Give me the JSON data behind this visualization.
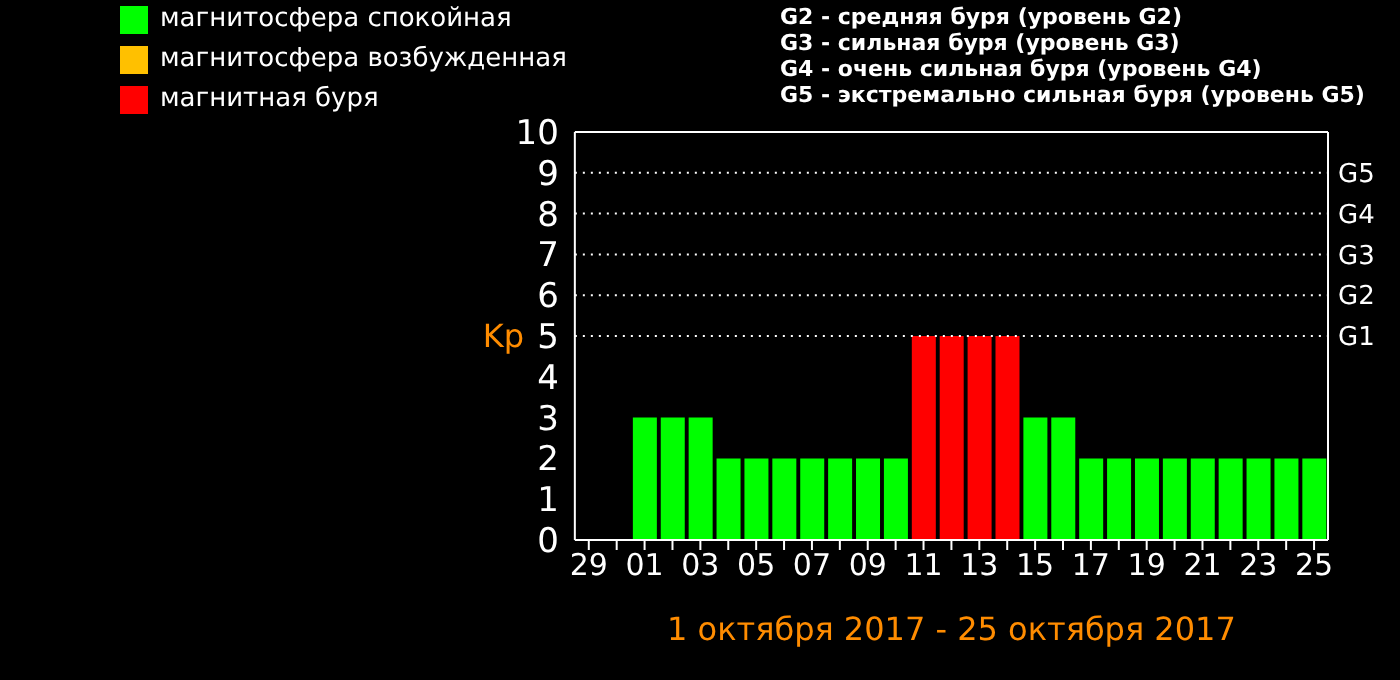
{
  "chart_data": {
    "type": "bar",
    "xlabel": "1 октября 2017 - 25 октября 2017",
    "ylabel": "Kp",
    "categories": [
      "29",
      null,
      "01",
      null,
      "03",
      null,
      "05",
      null,
      "07",
      null,
      "09",
      null,
      "11",
      null,
      "13",
      null,
      "15",
      null,
      "17",
      null,
      "19",
      null,
      "21",
      null,
      "23",
      null,
      "25"
    ],
    "series": [
      {
        "name": "магнитосфера спокойная",
        "color": "#00ff00",
        "values": [
          null,
          null,
          3,
          3,
          3,
          2,
          2,
          2,
          2,
          2,
          2,
          2,
          null,
          null,
          null,
          null,
          3,
          3,
          2,
          2,
          2,
          2,
          2,
          2,
          2,
          2,
          2
        ]
      },
      {
        "name": "магнитосфера возбужденная",
        "color": "#ffc000",
        "values": [
          null,
          null,
          null,
          null,
          null,
          null,
          null,
          null,
          null,
          null,
          null,
          null,
          null,
          null,
          null,
          null,
          null,
          null,
          null,
          null,
          null,
          null,
          null,
          null,
          null,
          null,
          null
        ]
      },
      {
        "name": "магнитная буря",
        "color": "#ff0000",
        "values": [
          null,
          null,
          null,
          null,
          null,
          null,
          null,
          null,
          null,
          null,
          null,
          null,
          5,
          5,
          5,
          5,
          null,
          null,
          null,
          null,
          null,
          null,
          null,
          null,
          null,
          null,
          null
        ]
      }
    ],
    "stacked": true,
    "ylim": [
      0,
      10
    ],
    "yticks": [
      0,
      1,
      2,
      3,
      4,
      5,
      6,
      7,
      8,
      9,
      10
    ],
    "ref_lines": [
      {
        "axis": "y",
        "value": 5,
        "label": "G1",
        "line_style": "dotted"
      },
      {
        "axis": "y",
        "value": 6,
        "label": "G2",
        "line_style": "dotted"
      },
      {
        "axis": "y",
        "value": 7,
        "label": "G3",
        "line_style": "dotted"
      },
      {
        "axis": "y",
        "value": 8,
        "label": "G4",
        "line_style": "dotted"
      },
      {
        "axis": "y",
        "value": 9,
        "label": "G5",
        "line_style": "dotted"
      }
    ],
    "annotations": [
      "G2 - средняя буря (уровень G2)",
      "G3 - сильная буря (уровень G3)",
      "G4 - очень сильная буря (уровень G4)",
      "G5 - экстремально сильная буря (уровень G5)"
    ],
    "legend": "top left",
    "grid": false
  }
}
